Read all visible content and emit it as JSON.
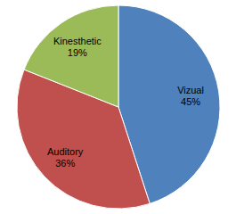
{
  "chart_data": {
    "type": "pie",
    "categories": [
      "Vizual",
      "Auditory",
      "Kinesthetic"
    ],
    "values": [
      45,
      36,
      19
    ],
    "value_labels": [
      "45%",
      "36%",
      "19%"
    ],
    "colors": [
      "#4f81bd",
      "#c0504d",
      "#9bbb59"
    ],
    "data_labels": true
  }
}
